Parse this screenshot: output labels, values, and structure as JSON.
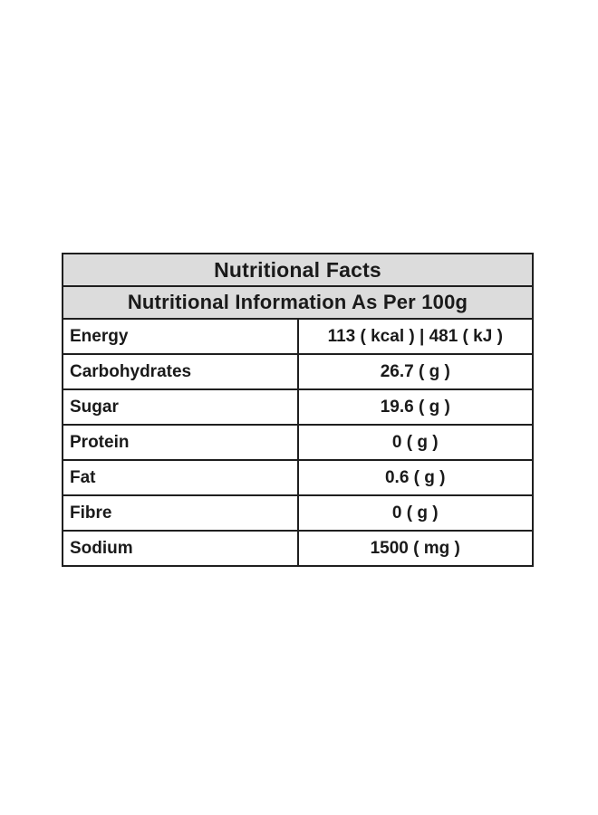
{
  "table": {
    "title": "Nutritional Facts",
    "subtitle": "Nutritional Information As Per 100g",
    "rows": [
      {
        "label": "Energy",
        "value": "113 ( kcal ) | 481 ( kJ )"
      },
      {
        "label": "Carbohydrates",
        "value": "26.7 ( g )"
      },
      {
        "label": "Sugar",
        "value": "19.6 ( g )"
      },
      {
        "label": "Protein",
        "value": "0 ( g )"
      },
      {
        "label": "Fat",
        "value": "0.6 ( g )"
      },
      {
        "label": "Fibre",
        "value": "0 ( g )"
      },
      {
        "label": "Sodium",
        "value": "1500 ( mg )"
      }
    ],
    "colors": {
      "header_bg": "#dcdcdc",
      "border": "#1f1f1f",
      "text": "#1a1a1a",
      "page_bg": "#ffffff"
    }
  }
}
